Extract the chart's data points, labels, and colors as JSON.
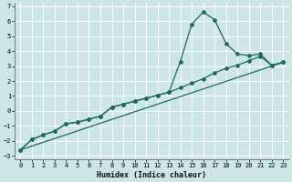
{
  "xlabel": "Humidex (Indice chaleur)",
  "bg_color": "#cce5e5",
  "grid_color": "#ffffff",
  "line_color": "#1a6b5a",
  "xlim": [
    -0.5,
    23.5
  ],
  "ylim": [
    -3.2,
    7.2
  ],
  "xticks": [
    0,
    1,
    2,
    3,
    4,
    5,
    6,
    7,
    8,
    9,
    10,
    11,
    12,
    13,
    14,
    15,
    16,
    17,
    18,
    19,
    20,
    21,
    22,
    23
  ],
  "yticks": [
    -3,
    -2,
    -1,
    0,
    1,
    2,
    3,
    4,
    5,
    6,
    7
  ],
  "series1_x": [
    0,
    1,
    2,
    3,
    4,
    5,
    6,
    7,
    8,
    9,
    10,
    11,
    12,
    13,
    14,
    15,
    16,
    17,
    18,
    19,
    20,
    21,
    22,
    23
  ],
  "series1_y": [
    -2.6,
    -1.9,
    -1.6,
    -1.35,
    -0.85,
    -0.75,
    -0.55,
    -0.35,
    0.25,
    0.45,
    0.65,
    0.85,
    1.05,
    1.25,
    3.3,
    5.8,
    6.6,
    6.1,
    4.5,
    3.8,
    3.7,
    3.8,
    3.05,
    3.25
  ],
  "series2_x": [
    0,
    1,
    2,
    3,
    4,
    5,
    6,
    7,
    8,
    9,
    10,
    11,
    12,
    13,
    14,
    15,
    16,
    17,
    18,
    19,
    20,
    21,
    22,
    23
  ],
  "series2_y": [
    -2.6,
    -1.9,
    -1.6,
    -1.35,
    -0.85,
    -0.75,
    -0.55,
    -0.35,
    0.25,
    0.45,
    0.65,
    0.85,
    1.05,
    1.25,
    1.55,
    1.85,
    2.15,
    2.55,
    2.85,
    3.05,
    3.35,
    3.65,
    3.05,
    3.25
  ],
  "series3_x": [
    0,
    23
  ],
  "series3_y": [
    -2.6,
    3.25
  ],
  "figsize": [
    3.2,
    2.0
  ],
  "dpi": 100
}
